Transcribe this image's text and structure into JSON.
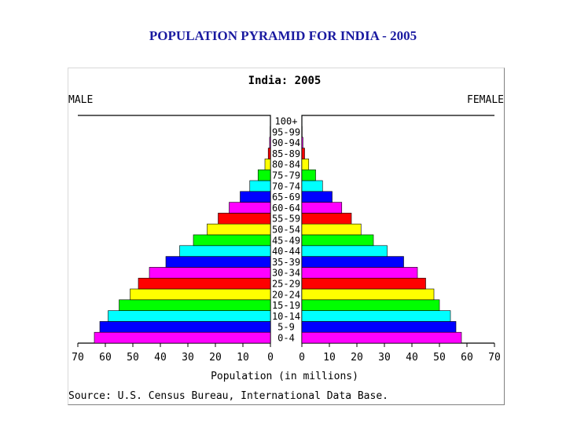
{
  "slide": {
    "title": "POPULATION PYRAMID FOR INDIA - 2005"
  },
  "chart_data": {
    "type": "bar",
    "title": "India: 2005",
    "left_label": "MALE",
    "right_label": "FEMALE",
    "xlabel": "Population (in millions)",
    "source": "Source: U.S. Census Bureau, International Data Base.",
    "xlim": [
      0,
      70
    ],
    "x_ticks_left": [
      "70",
      "60",
      "50",
      "40",
      "30",
      "20",
      "10",
      "0"
    ],
    "x_ticks_right": [
      "0",
      "10",
      "20",
      "30",
      "40",
      "50",
      "60",
      "70"
    ],
    "categories": [
      "0-4",
      "5-9",
      "10-14",
      "15-19",
      "20-24",
      "25-29",
      "30-34",
      "35-39",
      "40-44",
      "45-49",
      "50-54",
      "55-59",
      "60-64",
      "65-69",
      "70-74",
      "75-79",
      "80-84",
      "85-89",
      "90-94",
      "95-99",
      "100+"
    ],
    "series": [
      {
        "name": "MALE",
        "values": [
          64,
          62,
          59,
          55,
          51,
          48,
          44,
          38,
          33,
          28,
          23,
          19,
          15,
          11,
          7.5,
          4.5,
          2,
          0.8,
          0.3,
          0.1,
          0.05
        ]
      },
      {
        "name": "FEMALE",
        "values": [
          58,
          56,
          54,
          50,
          48,
          45,
          42,
          37,
          31,
          26,
          21.5,
          18,
          14.5,
          11,
          7.5,
          5,
          2.5,
          1,
          0.4,
          0.1,
          0.05
        ]
      }
    ],
    "colors": [
      "#ff00ff",
      "#0000ff",
      "#00ffff",
      "#00ff00",
      "#ffff00",
      "#ff0000",
      "#ff00ff",
      "#0000ff",
      "#00ffff",
      "#00ff00",
      "#ffff00",
      "#ff0000",
      "#ff00ff",
      "#0000ff",
      "#00ffff",
      "#00ff00",
      "#ffff00",
      "#ff0000",
      "#ff00ff",
      "#0000ff",
      "#00ffff"
    ]
  }
}
